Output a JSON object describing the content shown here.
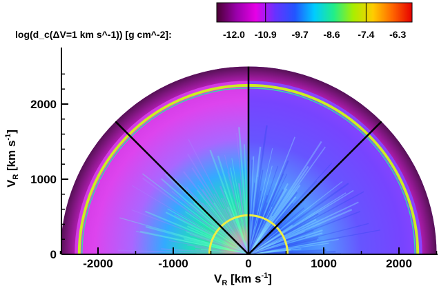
{
  "chart_data": {
    "type": "heatmap",
    "title": "",
    "xlabel": "V_R [km s^-1]",
    "ylabel": "V_R [km s^-1]",
    "xlim": [
      -2500,
      2500
    ],
    "ylim": [
      0,
      2600
    ],
    "x_ticks": [
      -2000,
      -1000,
      0,
      1000,
      2000
    ],
    "x_tick_labels": [
      "-2000",
      "-1000",
      "0",
      "1000",
      "2000"
    ],
    "y_ticks": [
      0,
      1000,
      2000
    ],
    "y_tick_labels": [
      "0",
      "1000",
      "2000"
    ],
    "colorbar": {
      "label": "log(d_c(ΔV=1 km s^-1)) [g cm^-2]:",
      "ticks": [
        -12.0,
        -10.9,
        -9.7,
        -8.6,
        -7.4,
        -6.3
      ],
      "tick_labels": [
        "-12.0",
        "-10.9",
        "-9.7",
        "-8.6",
        "-7.4",
        "-6.3"
      ],
      "range": [
        -12.6,
        -5.8
      ],
      "colors": [
        "#4a0033",
        "#9900aa",
        "#e600e6",
        "#6633ff",
        "#2255ff",
        "#00ccff",
        "#22ee88",
        "#aaee00",
        "#ffcc00",
        "#ff6600",
        "#e60000"
      ]
    },
    "outer_radius": 2500,
    "ring_radius": 2250,
    "inner_ring_radius": 520,
    "sector_lines_deg": [
      45,
      90,
      135
    ],
    "grid": false
  }
}
